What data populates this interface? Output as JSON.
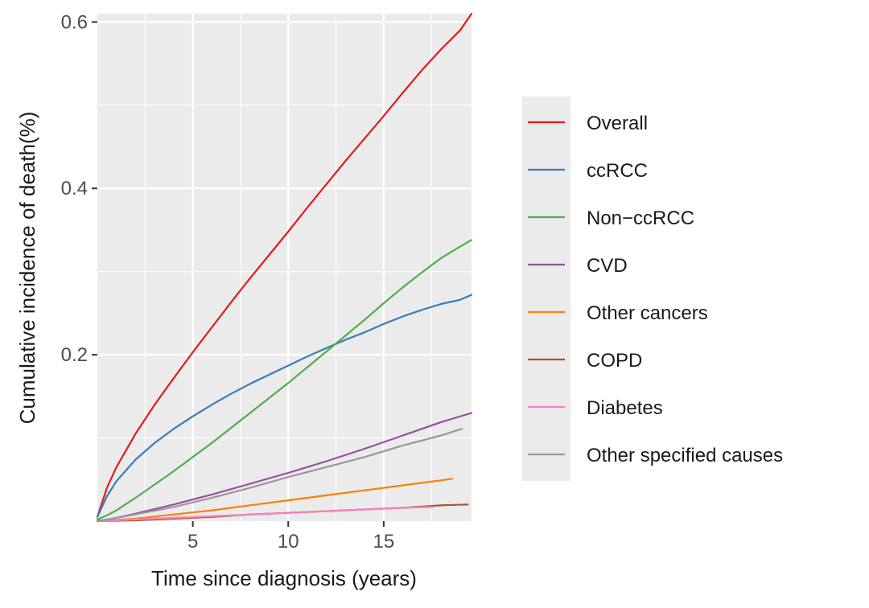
{
  "chart_data": {
    "type": "line",
    "title": "",
    "xlabel": "Time since diagnosis (years)",
    "ylabel": "Cumulative incidence of death(%)",
    "xlim": [
      0,
      19.6
    ],
    "ylim": [
      0,
      0.61
    ],
    "x_ticks": [
      5,
      10,
      15
    ],
    "x_tick_labels": [
      "5",
      "10",
      "15"
    ],
    "y_ticks": [
      0.2,
      0.4,
      0.6
    ],
    "y_tick_labels": [
      "0.2",
      "0.4",
      "0.6"
    ],
    "grid": true,
    "legend_position": "right",
    "series": [
      {
        "name": "Overall",
        "color": "#e41a1c",
        "x": [
          0,
          0.5,
          1,
          2,
          3,
          4,
          5,
          6,
          7,
          8,
          9,
          10,
          11,
          12,
          13,
          14,
          15,
          16,
          17,
          18,
          19,
          19.6
        ],
        "y": [
          0.005,
          0.04,
          0.065,
          0.105,
          0.14,
          0.172,
          0.203,
          0.233,
          0.263,
          0.292,
          0.32,
          0.348,
          0.377,
          0.405,
          0.433,
          0.46,
          0.487,
          0.515,
          0.542,
          0.567,
          0.59,
          0.61
        ]
      },
      {
        "name": "ccRCC",
        "color": "#377eb8",
        "x": [
          0,
          0.5,
          1,
          2,
          3,
          4,
          5,
          6,
          7,
          8,
          9,
          10,
          11,
          12,
          13,
          14,
          15,
          16,
          17,
          18,
          19,
          19.6
        ],
        "y": [
          0.005,
          0.03,
          0.048,
          0.074,
          0.094,
          0.111,
          0.126,
          0.14,
          0.153,
          0.165,
          0.176,
          0.187,
          0.198,
          0.208,
          0.218,
          0.227,
          0.237,
          0.246,
          0.254,
          0.261,
          0.266,
          0.272
        ]
      },
      {
        "name": "Non−ccRCC",
        "color": "#4daf4a",
        "x": [
          0,
          0.5,
          1,
          2,
          3,
          4,
          5,
          6,
          7,
          8,
          9,
          10,
          11,
          12,
          13,
          14,
          15,
          16,
          17,
          18,
          19,
          19.6
        ],
        "y": [
          0.002,
          0.007,
          0.013,
          0.028,
          0.044,
          0.06,
          0.077,
          0.094,
          0.112,
          0.13,
          0.148,
          0.166,
          0.185,
          0.204,
          0.223,
          0.242,
          0.262,
          0.281,
          0.299,
          0.316,
          0.33,
          0.338
        ]
      },
      {
        "name": "CVD",
        "color": "#984ea3",
        "x": [
          0,
          1,
          2,
          4,
          6,
          8,
          10,
          12,
          14,
          16,
          18,
          19.6
        ],
        "y": [
          0,
          0.004,
          0.009,
          0.02,
          0.032,
          0.045,
          0.058,
          0.072,
          0.087,
          0.103,
          0.119,
          0.13
        ]
      },
      {
        "name": "Other cancers",
        "color": "#ff7f00",
        "x": [
          0,
          2,
          4,
          6,
          8,
          10,
          12,
          14,
          16,
          17,
          18,
          18.6
        ],
        "y": [
          0,
          0.003,
          0.008,
          0.013,
          0.019,
          0.025,
          0.031,
          0.037,
          0.043,
          0.046,
          0.049,
          0.051
        ]
      },
      {
        "name": "COPD",
        "color": "#a65628",
        "x": [
          0,
          2,
          4,
          6,
          8,
          10,
          12,
          14,
          16,
          18,
          19.4
        ],
        "y": [
          0,
          0.001,
          0.003,
          0.005,
          0.008,
          0.01,
          0.012,
          0.014,
          0.016,
          0.019,
          0.02
        ]
      },
      {
        "name": "Diabetes",
        "color": "#f781bf",
        "x": [
          0,
          2,
          4,
          6,
          8,
          10,
          12,
          14,
          16,
          17.6
        ],
        "y": [
          0,
          0.002,
          0.004,
          0.006,
          0.008,
          0.01,
          0.012,
          0.014,
          0.016,
          0.017
        ]
      },
      {
        "name": "Other specified causes",
        "color": "#999999",
        "x": [
          0,
          1,
          2,
          4,
          6,
          8,
          10,
          12,
          14,
          16,
          18,
          19.1
        ],
        "y": [
          0,
          0.004,
          0.008,
          0.017,
          0.028,
          0.04,
          0.053,
          0.065,
          0.077,
          0.091,
          0.103,
          0.111
        ]
      }
    ]
  }
}
